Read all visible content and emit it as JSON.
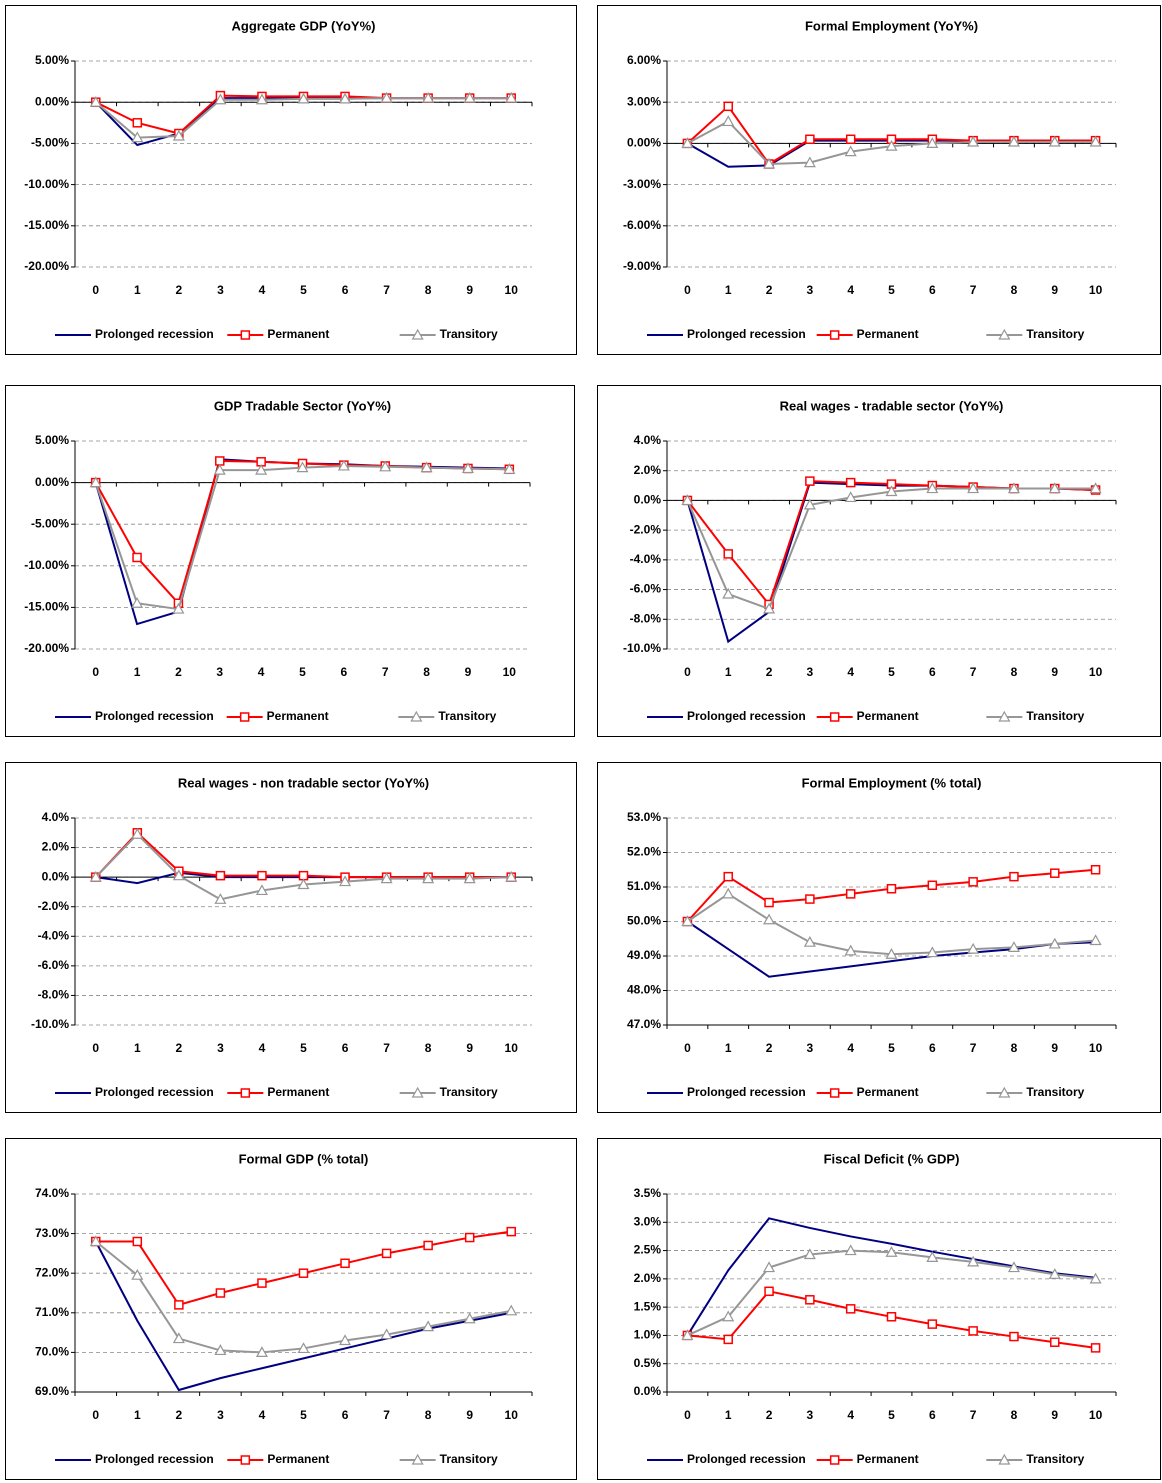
{
  "chart_data": [
    {
      "type": "line",
      "title": "Aggregate GDP (YoY%)",
      "categories": [
        "0",
        "1",
        "2",
        "3",
        "4",
        "5",
        "6",
        "7",
        "8",
        "9",
        "10"
      ],
      "ylim": [
        -20,
        5
      ],
      "yticks": [
        {
          "value": 5,
          "label": "5.00%"
        },
        {
          "value": 0,
          "label": "0.00%"
        },
        {
          "value": -5,
          "label": "-5.00%"
        },
        {
          "value": -10,
          "label": "-10.00%"
        },
        {
          "value": -15,
          "label": "-15.00%"
        },
        {
          "value": -20,
          "label": "-20.00%"
        }
      ],
      "grid": true,
      "series": [
        {
          "name": "Prolonged recession",
          "color": "#000080",
          "marker": "none",
          "values": [
            0,
            -5.2,
            -3.8,
            0.5,
            0.5,
            0.5,
            0.5,
            0.5,
            0.5,
            0.5,
            0.5
          ]
        },
        {
          "name": "Permanent",
          "color": "#ff0000",
          "marker": "square",
          "values": [
            0,
            -2.5,
            -3.8,
            0.8,
            0.7,
            0.7,
            0.7,
            0.5,
            0.5,
            0.5,
            0.5
          ]
        },
        {
          "name": "Transitory",
          "color": "#969696",
          "marker": "triangle",
          "values": [
            0,
            -4.3,
            -4.1,
            0.3,
            0.3,
            0.4,
            0.4,
            0.5,
            0.5,
            0.5,
            0.5
          ]
        }
      ]
    },
    {
      "type": "line",
      "title": "Formal Employment (YoY%)",
      "categories": [
        "0",
        "1",
        "2",
        "3",
        "4",
        "5",
        "6",
        "7",
        "8",
        "9",
        "10"
      ],
      "ylim": [
        -9,
        6
      ],
      "yticks": [
        {
          "value": 6,
          "label": "6.00%"
        },
        {
          "value": 3,
          "label": "3.00%"
        },
        {
          "value": 0,
          "label": "0.00%"
        },
        {
          "value": -3,
          "label": "-3.00%"
        },
        {
          "value": -6,
          "label": "-6.00%"
        },
        {
          "value": -9,
          "label": "-9.00%"
        }
      ],
      "grid": true,
      "series": [
        {
          "name": "Prolonged recession",
          "color": "#000080",
          "marker": "none",
          "values": [
            0,
            -1.7,
            -1.6,
            0.2,
            0.2,
            0.2,
            0.2,
            0.2,
            0.2,
            0.2,
            0.2
          ]
        },
        {
          "name": "Permanent",
          "color": "#ff0000",
          "marker": "square",
          "values": [
            0,
            2.7,
            -1.5,
            0.3,
            0.3,
            0.3,
            0.3,
            0.2,
            0.2,
            0.2,
            0.2
          ]
        },
        {
          "name": "Transitory",
          "color": "#969696",
          "marker": "triangle",
          "values": [
            0,
            1.6,
            -1.5,
            -1.4,
            -0.6,
            -0.2,
            0,
            0.1,
            0.1,
            0.1,
            0.1
          ]
        }
      ]
    },
    {
      "type": "line",
      "title": "GDP Tradable Sector (YoY%)",
      "categories": [
        "0",
        "1",
        "2",
        "3",
        "4",
        "5",
        "6",
        "7",
        "8",
        "9",
        "10"
      ],
      "ylim": [
        -20,
        5
      ],
      "yticks": [
        {
          "value": 5,
          "label": "5.00%"
        },
        {
          "value": 0,
          "label": "0.00%"
        },
        {
          "value": -5,
          "label": "-5.00%"
        },
        {
          "value": -10,
          "label": "-10.00%"
        },
        {
          "value": -15,
          "label": "-15.00%"
        },
        {
          "value": -20,
          "label": "-20.00%"
        }
      ],
      "grid": true,
      "series": [
        {
          "name": "Prolonged recession",
          "color": "#000080",
          "marker": "none",
          "values": [
            0,
            -17,
            -15.5,
            2.8,
            2.5,
            2.3,
            2.2,
            2.0,
            1.9,
            1.8,
            1.7
          ]
        },
        {
          "name": "Permanent",
          "color": "#ff0000",
          "marker": "square",
          "values": [
            0,
            -9,
            -14.5,
            2.6,
            2.5,
            2.3,
            2.1,
            2.0,
            1.8,
            1.7,
            1.6
          ]
        },
        {
          "name": "Transitory",
          "color": "#969696",
          "marker": "triangle",
          "values": [
            0,
            -14.5,
            -15.2,
            1.5,
            1.5,
            1.8,
            2.0,
            1.9,
            1.8,
            1.7,
            1.6
          ]
        }
      ]
    },
    {
      "type": "line",
      "title": "Real wages - tradable sector (YoY%)",
      "categories": [
        "0",
        "1",
        "2",
        "3",
        "4",
        "5",
        "6",
        "7",
        "8",
        "9",
        "10"
      ],
      "ylim": [
        -10,
        4
      ],
      "yticks": [
        {
          "value": 4,
          "label": "4.0%"
        },
        {
          "value": 2,
          "label": "2.0%"
        },
        {
          "value": 0,
          "label": "0.0%"
        },
        {
          "value": -2,
          "label": "-2.0%"
        },
        {
          "value": -4,
          "label": "-4.0%"
        },
        {
          "value": -6,
          "label": "-6.0%"
        },
        {
          "value": -8,
          "label": "-8.0%"
        },
        {
          "value": -10,
          "label": "-10.0%"
        }
      ],
      "grid": true,
      "series": [
        {
          "name": "Prolonged recession",
          "color": "#000080",
          "marker": "none",
          "values": [
            0,
            -9.5,
            -7.5,
            1.2,
            1.1,
            1.0,
            1.0,
            0.9,
            0.8,
            0.8,
            0.7
          ]
        },
        {
          "name": "Permanent",
          "color": "#ff0000",
          "marker": "square",
          "values": [
            0,
            -3.6,
            -7.0,
            1.3,
            1.2,
            1.1,
            1.0,
            0.9,
            0.8,
            0.8,
            0.7
          ]
        },
        {
          "name": "Transitory",
          "color": "#969696",
          "marker": "triangle",
          "values": [
            0,
            -6.3,
            -7.3,
            -0.3,
            0.2,
            0.6,
            0.8,
            0.8,
            0.8,
            0.8,
            0.8
          ]
        }
      ]
    },
    {
      "type": "line",
      "title": "Real wages - non tradable sector (YoY%)",
      "categories": [
        "0",
        "1",
        "2",
        "3",
        "4",
        "5",
        "6",
        "7",
        "8",
        "9",
        "10"
      ],
      "ylim": [
        -10,
        4
      ],
      "yticks": [
        {
          "value": 4,
          "label": "4.0%"
        },
        {
          "value": 2,
          "label": "2.0%"
        },
        {
          "value": 0,
          "label": "0.0%"
        },
        {
          "value": -2,
          "label": "-2.0%"
        },
        {
          "value": -4,
          "label": "-4.0%"
        },
        {
          "value": -6,
          "label": "-6.0%"
        },
        {
          "value": -8,
          "label": "-8.0%"
        },
        {
          "value": -10,
          "label": "-10.0%"
        }
      ],
      "grid": true,
      "series": [
        {
          "name": "Prolonged recession",
          "color": "#000080",
          "marker": "none",
          "values": [
            0,
            -0.4,
            0.3,
            0,
            0,
            0,
            0,
            0,
            0,
            0,
            0
          ]
        },
        {
          "name": "Permanent",
          "color": "#ff0000",
          "marker": "square",
          "values": [
            0,
            3.0,
            0.4,
            0.1,
            0.1,
            0.1,
            0,
            0,
            0,
            0,
            0
          ]
        },
        {
          "name": "Transitory",
          "color": "#969696",
          "marker": "triangle",
          "values": [
            0,
            2.9,
            0.1,
            -1.5,
            -0.9,
            -0.5,
            -0.3,
            -0.1,
            -0.1,
            -0.1,
            0
          ]
        }
      ]
    },
    {
      "type": "line",
      "title": "Formal Employment (% total)",
      "categories": [
        "0",
        "1",
        "2",
        "3",
        "4",
        "5",
        "6",
        "7",
        "8",
        "9",
        "10"
      ],
      "ylim": [
        47,
        53
      ],
      "yticks": [
        {
          "value": 53,
          "label": "53.0%"
        },
        {
          "value": 52,
          "label": "52.0%"
        },
        {
          "value": 51,
          "label": "51.0%"
        },
        {
          "value": 50,
          "label": "50.0%"
        },
        {
          "value": 49,
          "label": "49.0%"
        },
        {
          "value": 48,
          "label": "48.0%"
        },
        {
          "value": 47,
          "label": "47.0%"
        }
      ],
      "grid": true,
      "series": [
        {
          "name": "Prolonged recession",
          "color": "#000080",
          "marker": "none",
          "values": [
            50,
            49.2,
            48.4,
            48.55,
            48.7,
            48.85,
            49.0,
            49.1,
            49.2,
            49.35,
            49.4
          ]
        },
        {
          "name": "Permanent",
          "color": "#ff0000",
          "marker": "square",
          "values": [
            50,
            51.3,
            50.55,
            50.65,
            50.8,
            50.95,
            51.05,
            51.15,
            51.3,
            51.4,
            51.5
          ]
        },
        {
          "name": "Transitory",
          "color": "#969696",
          "marker": "triangle",
          "values": [
            50,
            50.8,
            50.05,
            49.4,
            49.15,
            49.05,
            49.1,
            49.2,
            49.25,
            49.35,
            49.45
          ]
        }
      ]
    },
    {
      "type": "line",
      "title": "Formal GDP (% total)",
      "categories": [
        "0",
        "1",
        "2",
        "3",
        "4",
        "5",
        "6",
        "7",
        "8",
        "9",
        "10"
      ],
      "ylim": [
        69,
        74
      ],
      "yticks": [
        {
          "value": 74,
          "label": "74.0%"
        },
        {
          "value": 73,
          "label": "73.0%"
        },
        {
          "value": 72,
          "label": "72.0%"
        },
        {
          "value": 71,
          "label": "71.0%"
        },
        {
          "value": 70,
          "label": "70.0%"
        },
        {
          "value": 69,
          "label": "69.0%"
        }
      ],
      "grid": true,
      "series": [
        {
          "name": "Prolonged recession",
          "color": "#000080",
          "marker": "none",
          "values": [
            72.8,
            70.8,
            69.05,
            69.35,
            69.6,
            69.85,
            70.1,
            70.35,
            70.6,
            70.8,
            71.0
          ]
        },
        {
          "name": "Permanent",
          "color": "#ff0000",
          "marker": "square",
          "values": [
            72.8,
            72.8,
            71.2,
            71.5,
            71.75,
            72.0,
            72.25,
            72.5,
            72.7,
            72.9,
            73.05
          ]
        },
        {
          "name": "Transitory",
          "color": "#969696",
          "marker": "triangle",
          "values": [
            72.8,
            71.95,
            70.35,
            70.05,
            70.0,
            70.1,
            70.3,
            70.45,
            70.65,
            70.85,
            71.05
          ]
        }
      ]
    },
    {
      "type": "line",
      "title": "Fiscal Deficit (% GDP)",
      "categories": [
        "0",
        "1",
        "2",
        "3",
        "4",
        "5",
        "6",
        "7",
        "8",
        "9",
        "10"
      ],
      "ylim": [
        0,
        3.5
      ],
      "yticks": [
        {
          "value": 3.5,
          "label": "3.5%"
        },
        {
          "value": 3,
          "label": "3.0%"
        },
        {
          "value": 2.5,
          "label": "2.5%"
        },
        {
          "value": 2,
          "label": "2.0%"
        },
        {
          "value": 1.5,
          "label": "1.5%"
        },
        {
          "value": 1,
          "label": "1.0%"
        },
        {
          "value": 0.5,
          "label": "0.5%"
        },
        {
          "value": 0,
          "label": "0.0%"
        }
      ],
      "grid": true,
      "series": [
        {
          "name": "Prolonged recession",
          "color": "#000080",
          "marker": "none",
          "values": [
            1.0,
            2.15,
            3.07,
            2.9,
            2.75,
            2.62,
            2.48,
            2.35,
            2.22,
            2.1,
            2.02
          ]
        },
        {
          "name": "Permanent",
          "color": "#ff0000",
          "marker": "square",
          "values": [
            1.0,
            0.93,
            1.78,
            1.63,
            1.47,
            1.33,
            1.2,
            1.08,
            0.98,
            0.88,
            0.78
          ]
        },
        {
          "name": "Transitory",
          "color": "#969696",
          "marker": "triangle",
          "values": [
            1.0,
            1.33,
            2.2,
            2.43,
            2.5,
            2.47,
            2.38,
            2.3,
            2.2,
            2.08,
            2.0
          ]
        }
      ]
    }
  ]
}
